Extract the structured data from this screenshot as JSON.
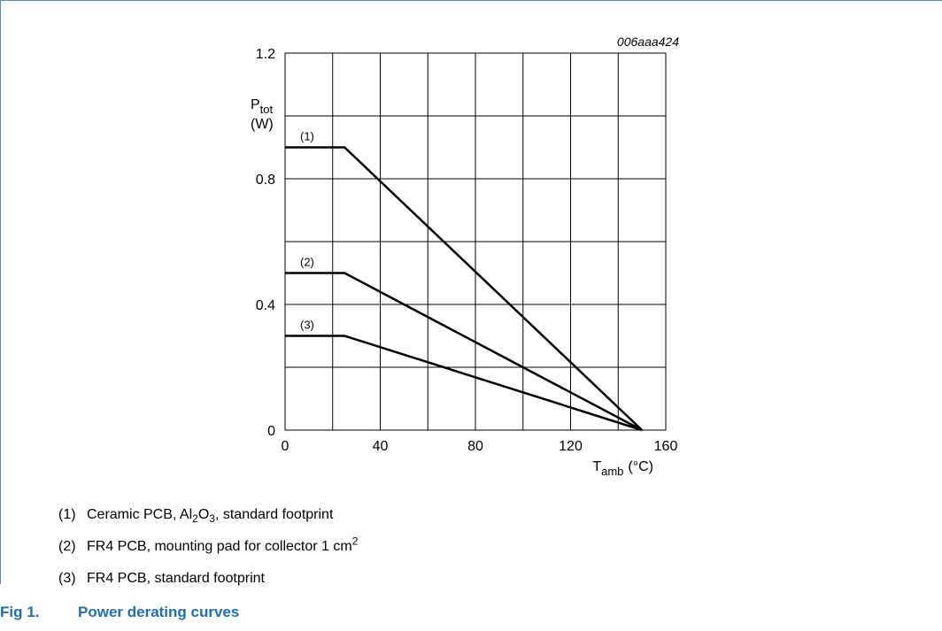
{
  "figure": {
    "id_label": "006aaa424",
    "caption_number": "Fig 1.",
    "caption_text": "Power derating curves"
  },
  "chart_data": {
    "type": "line",
    "x_axis": {
      "label_main": "T",
      "label_sub": "amb",
      "label_unit": "(°C)",
      "range": [
        0,
        160
      ],
      "ticks": [
        "0",
        "40",
        "80",
        "120",
        "160"
      ]
    },
    "y_axis": {
      "label_main": "P",
      "label_sub": "tot",
      "label_unit": "(W)",
      "range": [
        0,
        1.2
      ],
      "ticks": [
        "0",
        "0.4",
        "0.8",
        "1.2"
      ]
    },
    "grid": true,
    "grid_x_step": 20,
    "grid_y_step": 0.2,
    "series": [
      {
        "name": "(1)",
        "points": [
          [
            0,
            0.9
          ],
          [
            25,
            0.9
          ],
          [
            150,
            0
          ]
        ]
      },
      {
        "name": "(2)",
        "points": [
          [
            0,
            0.5
          ],
          [
            25,
            0.5
          ],
          [
            150,
            0
          ]
        ]
      },
      {
        "name": "(3)",
        "points": [
          [
            0,
            0.3
          ],
          [
            25,
            0.3
          ],
          [
            150,
            0
          ]
        ]
      }
    ]
  },
  "notes": [
    {
      "num": "(1)",
      "parts": [
        [
          "Ceramic PCB, Al",
          ""
        ],
        [
          "2",
          "sub"
        ],
        [
          "O",
          ""
        ],
        [
          "3",
          "sub"
        ],
        [
          ", standard footprint",
          ""
        ]
      ]
    },
    {
      "num": "(2)",
      "parts": [
        [
          "FR4 PCB, mounting pad for collector 1 cm",
          ""
        ],
        [
          "2",
          "sup"
        ]
      ]
    },
    {
      "num": "(3)",
      "parts": [
        [
          "FR4 PCB, standard footprint",
          ""
        ]
      ]
    }
  ]
}
